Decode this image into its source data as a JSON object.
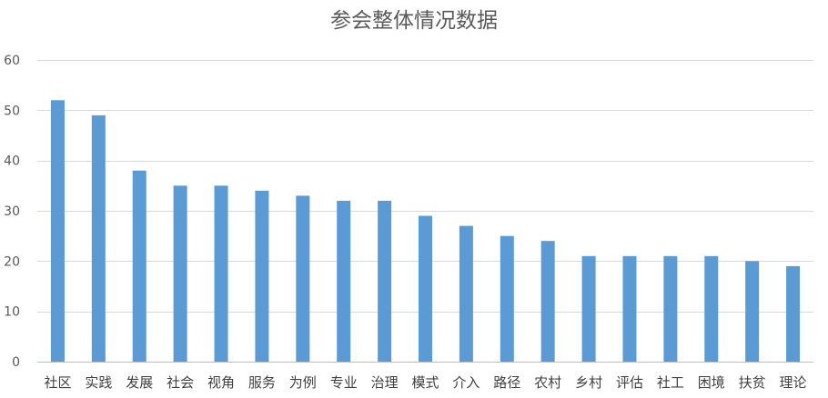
{
  "chart_data": {
    "type": "bar",
    "title": "参会整体情况数据",
    "xlabel": "",
    "ylabel": "",
    "ylim": [
      0,
      60
    ],
    "yticks": [
      0,
      10,
      20,
      30,
      40,
      50,
      60
    ],
    "grid": true,
    "legend": "none",
    "bar_color": "#5b9bd5",
    "categories": [
      "社区",
      "实践",
      "发展",
      "社会",
      "视角",
      "服务",
      "为例",
      "专业",
      "治理",
      "模式",
      "介入",
      "路径",
      "农村",
      "乡村",
      "评估",
      "社工",
      "困境",
      "扶贫",
      "理论"
    ],
    "values": [
      52,
      49,
      38,
      35,
      35,
      34,
      33,
      32,
      32,
      29,
      27,
      25,
      24,
      21,
      21,
      21,
      21,
      20,
      19
    ]
  }
}
